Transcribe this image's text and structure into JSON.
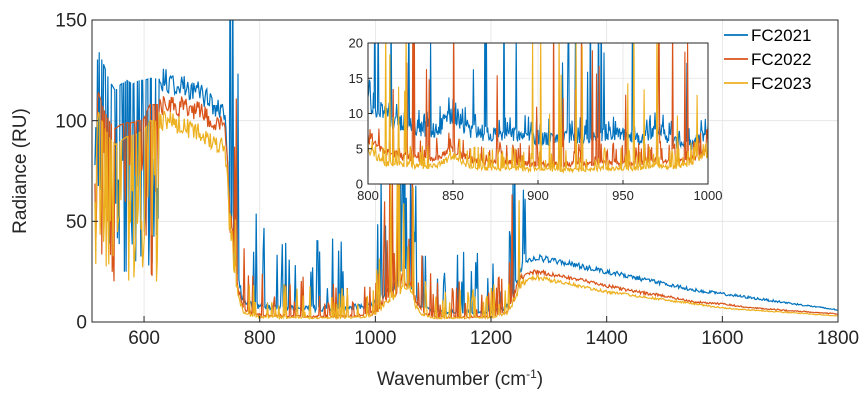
{
  "chart_data": [
    {
      "type": "line",
      "role": "main",
      "xlabel": "Wavenumber (cm",
      "xlabel_superscript": "-1",
      "xlabel_suffix": ")",
      "ylabel": "Radiance (RU)",
      "xlim": [
        510,
        1800
      ],
      "ylim": [
        0,
        150
      ],
      "xticks": [
        600,
        800,
        1000,
        1200,
        1400,
        1600,
        1800
      ],
      "yticks": [
        0,
        50,
        100,
        150
      ],
      "grid": true,
      "legend_position": "top-right",
      "series": [
        {
          "name": "FC2021",
          "color": "#0072BD",
          "x": [
            515,
            520,
            530,
            540,
            550,
            560,
            570,
            580,
            590,
            600,
            610,
            620,
            640,
            660,
            680,
            700,
            710,
            720,
            730,
            740,
            745,
            750,
            755,
            760,
            770,
            780,
            800,
            850,
            900,
            950,
            980,
            1000,
            1020,
            1040,
            1050,
            1060,
            1070,
            1080,
            1100,
            1150,
            1200,
            1230,
            1250,
            1260,
            1280,
            1300,
            1350,
            1400,
            1450,
            1500,
            1550,
            1600,
            1650,
            1700,
            1750,
            1800
          ],
          "y": [
            80,
            136,
            128,
            120,
            115,
            118,
            120,
            118,
            120,
            120,
            121,
            121,
            120,
            118,
            116,
            113,
            110,
            106,
            105,
            103,
            80,
            55,
            40,
            25,
            12,
            9,
            8,
            7,
            6.5,
            7,
            8,
            10,
            15,
            20,
            23,
            20,
            12,
            8,
            5,
            5,
            5,
            8,
            24,
            30,
            32,
            31,
            28,
            25,
            22,
            19,
            16,
            14,
            12,
            10,
            8,
            6
          ]
        },
        {
          "name": "FC2022",
          "color": "#D95319",
          "x": [
            515,
            520,
            530,
            540,
            550,
            560,
            570,
            580,
            590,
            600,
            610,
            620,
            640,
            660,
            680,
            700,
            710,
            720,
            730,
            740,
            745,
            750,
            755,
            760,
            770,
            780,
            800,
            850,
            900,
            950,
            980,
            1000,
            1020,
            1040,
            1050,
            1060,
            1070,
            1080,
            1100,
            1150,
            1200,
            1230,
            1250,
            1260,
            1280,
            1300,
            1350,
            1400,
            1450,
            1500,
            1550,
            1600,
            1650,
            1700,
            1750,
            1800
          ],
          "y": [
            70,
            115,
            106,
            100,
            96,
            98,
            99,
            99,
            100,
            101,
            108,
            108,
            108,
            107,
            106,
            104,
            101,
            99,
            98,
            96,
            75,
            50,
            35,
            20,
            8,
            5,
            3.5,
            3,
            2.7,
            3,
            3.5,
            5,
            12,
            18,
            21,
            18,
            10,
            5,
            2.5,
            2.5,
            2.5,
            6,
            20,
            24,
            25,
            24,
            21,
            18,
            15,
            13,
            10,
            9,
            7,
            6,
            5,
            4
          ]
        },
        {
          "name": "FC2023",
          "color": "#EDB120",
          "x": [
            515,
            520,
            530,
            540,
            550,
            560,
            570,
            580,
            590,
            600,
            610,
            620,
            640,
            660,
            680,
            700,
            710,
            720,
            730,
            740,
            745,
            750,
            755,
            760,
            770,
            780,
            800,
            850,
            900,
            950,
            980,
            1000,
            1020,
            1040,
            1050,
            1060,
            1070,
            1080,
            1100,
            1150,
            1200,
            1230,
            1250,
            1260,
            1280,
            1300,
            1350,
            1400,
            1450,
            1500,
            1550,
            1600,
            1650,
            1700,
            1750,
            1800
          ],
          "y": [
            60,
            105,
            98,
            92,
            88,
            90,
            92,
            93,
            94,
            95,
            100,
            100,
            100,
            98,
            96,
            94,
            91,
            89,
            88,
            86,
            68,
            45,
            30,
            17,
            6,
            3.5,
            2.5,
            2.2,
            2,
            2.2,
            2.5,
            4,
            10,
            16,
            19,
            16,
            8,
            4,
            2,
            2,
            2,
            5,
            17,
            21,
            22,
            21,
            18,
            15,
            13,
            11,
            9,
            7,
            6,
            5,
            4,
            3
          ]
        }
      ]
    },
    {
      "type": "line",
      "role": "inset",
      "xlim": [
        800,
        1000
      ],
      "ylim": [
        0,
        20
      ],
      "xticks": [
        800,
        850,
        900,
        950,
        1000
      ],
      "yticks": [
        0,
        5,
        10,
        15,
        20
      ],
      "grid": true,
      "series": [
        {
          "name": "FC2021",
          "color": "#0072BD",
          "x": [
            800,
            810,
            820,
            830,
            840,
            850,
            860,
            870,
            880,
            890,
            900,
            910,
            920,
            930,
            940,
            950,
            960,
            970,
            980,
            990,
            1000
          ],
          "y": [
            12,
            10,
            8.5,
            8,
            7.5,
            10,
            7.5,
            7,
            7,
            7,
            6.5,
            6.5,
            6.5,
            6.5,
            7,
            7,
            6.5,
            8,
            6,
            5.5,
            7.5
          ]
        },
        {
          "name": "FC2022",
          "color": "#D95319",
          "x": [
            800,
            810,
            820,
            830,
            840,
            850,
            860,
            870,
            880,
            890,
            900,
            910,
            920,
            930,
            940,
            950,
            960,
            970,
            980,
            990,
            1000
          ],
          "y": [
            6.5,
            4.5,
            4,
            3.5,
            3.5,
            5,
            3.5,
            3,
            3,
            3,
            2.8,
            2.8,
            2.8,
            2.8,
            3,
            3,
            3,
            3.5,
            3,
            3.5,
            5
          ]
        },
        {
          "name": "FC2023",
          "color": "#EDB120",
          "x": [
            800,
            810,
            820,
            830,
            840,
            850,
            860,
            870,
            880,
            890,
            900,
            910,
            920,
            930,
            940,
            950,
            960,
            970,
            980,
            990,
            1000
          ],
          "y": [
            5,
            3,
            2.8,
            2.5,
            2.5,
            4,
            2.5,
            2.2,
            2.2,
            2.2,
            2,
            2,
            2,
            2,
            2.2,
            2.2,
            2.2,
            2.8,
            2.2,
            3,
            4.5
          ]
        }
      ]
    }
  ]
}
